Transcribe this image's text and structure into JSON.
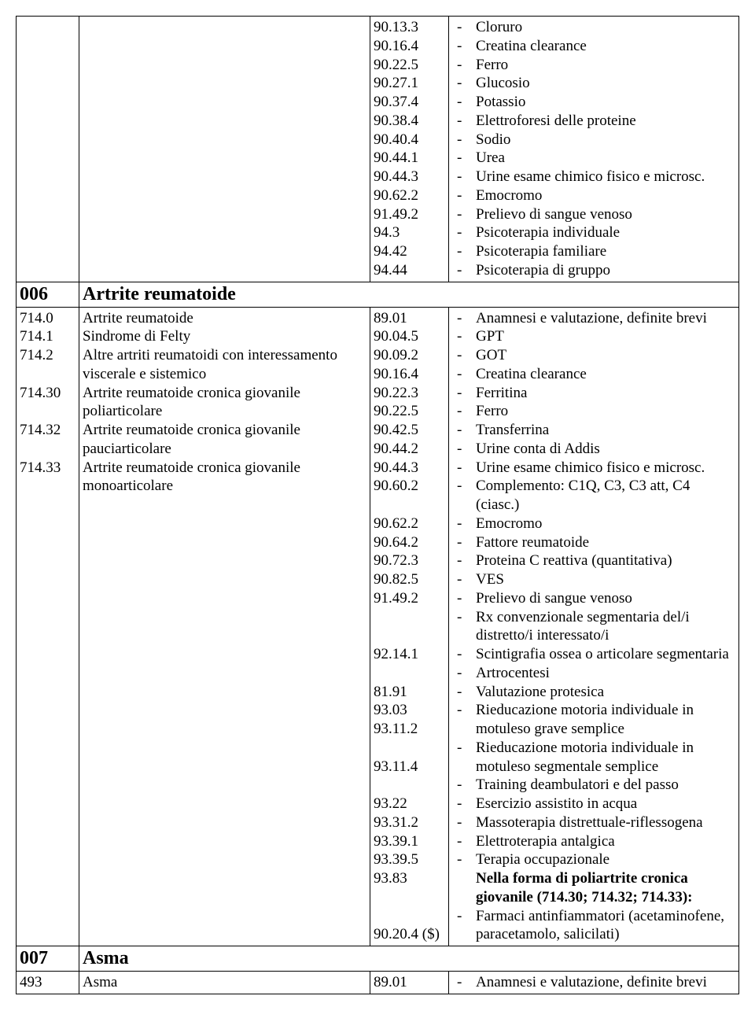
{
  "rows": {
    "r0": {
      "codes": [
        "90.13.3",
        "90.16.4",
        "90.22.5",
        "90.27.1",
        "90.37.4",
        "90.38.4",
        "90.40.4",
        "90.44.1",
        "90.44.3",
        "90.62.2",
        "91.49.2",
        "94.3",
        "94.42",
        "94.44"
      ],
      "items": [
        "Cloruro",
        "Creatina clearance",
        "Ferro",
        "Glucosio",
        "Potassio",
        "Elettroforesi delle proteine",
        "Sodio",
        "Urea",
        "Urine esame chimico fisico e microsc.",
        "Emocromo",
        "Prelievo di sangue venoso",
        "Psicoterapia individuale",
        "Psicoterapia familiare",
        "Psicoterapia di gruppo"
      ]
    },
    "h006": {
      "code": "006",
      "title": "Artrite reumatoide"
    },
    "r006": {
      "left_codes": [
        "714.0",
        "714.1",
        "714.2",
        "",
        "714.30",
        "",
        "714.32",
        "",
        "714.33"
      ],
      "left_desc": [
        "Artrite reumatoide",
        "Sindrome di Felty",
        "Altre artriti reumatoidi con interessamento viscerale e sistemico",
        "Artrite reumatoide cronica giovanile poliarticolare",
        "Artrite reumatoide cronica giovanile pauciarticolare",
        "Artrite reumatoide cronica giovanile monoarticolare"
      ],
      "codes3": [
        "89.01",
        "90.04.5",
        "90.09.2",
        "90.16.4",
        "90.22.3",
        "90.22.5",
        "90.42.5",
        "90.44.2",
        "90.44.3",
        "90.60.2",
        "",
        "90.62.2",
        "90.64.2",
        "90.72.3",
        "90.82.5",
        "91.49.2",
        "",
        "",
        "92.14.1",
        "",
        "81.91",
        "93.03",
        "93.11.2",
        "",
        "93.11.4",
        "",
        "93.22",
        "93.31.2",
        "93.39.1",
        "93.39.5",
        "93.83",
        "",
        "",
        "90.20.4 ($)"
      ],
      "items": [
        {
          "t": "Anamnesi e valutazione, definite brevi"
        },
        {
          "t": "GPT"
        },
        {
          "t": "GOT"
        },
        {
          "t": "Creatina clearance"
        },
        {
          "t": "Ferritina"
        },
        {
          "t": "Ferro"
        },
        {
          "t": "Transferrina"
        },
        {
          "t": "Urine conta di Addis"
        },
        {
          "t": "Urine esame chimico fisico e microsc."
        },
        {
          "t": "Complemento: C1Q, C3, C3 att, C4 (ciasc.)"
        },
        {
          "t": "Emocromo"
        },
        {
          "t": "Fattore reumatoide"
        },
        {
          "t": "Proteina C reattiva (quantitativa)"
        },
        {
          "t": "VES"
        },
        {
          "t": "Prelievo di sangue venoso"
        },
        {
          "t": "Rx convenzionale segmentaria del/i distretto/i interessato/i"
        },
        {
          "t": "Scintigrafia ossea o articolare segmentaria"
        },
        {
          "t": "Artrocentesi"
        },
        {
          "t": "Valutazione protesica"
        },
        {
          "t": "Rieducazione motoria individuale in motuleso grave semplice"
        },
        {
          "t": "Rieducazione motoria individuale in motuleso segmentale semplice"
        },
        {
          "t": "Training deambulatori e del passo"
        },
        {
          "t": "Esercizio assistito in acqua"
        },
        {
          "t": "Massoterapia distrettuale-riflessogena"
        },
        {
          "t": "Elettroterapia antalgica"
        },
        {
          "t": "Terapia occupazionale"
        },
        {
          "t": "Nella forma di poliartrite cronica giovanile (714.30; 714.32; 714.33):",
          "noprefix": true,
          "bold": true
        },
        {
          "t": "Farmaci antinfiammatori (acetaminofene, paracetamolo, salicilati)"
        }
      ]
    },
    "h007": {
      "code": "007",
      "title": "Asma"
    },
    "r007": {
      "left_codes": [
        "493"
      ],
      "left_desc": [
        "Asma"
      ],
      "codes3": [
        "89.01"
      ],
      "items": [
        {
          "t": "Anamnesi e valutazione, definite brevi"
        }
      ]
    }
  }
}
